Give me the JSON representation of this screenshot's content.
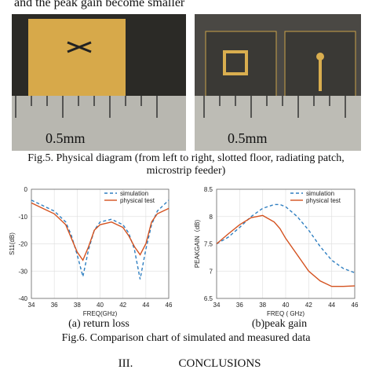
{
  "text_top": "and the peak gain become smaller",
  "figure5": {
    "photo_labels": [
      "0.5mm",
      "0.5mm"
    ],
    "caption_line1": "Fig.5. Physical diagram (from left to right, slotted floor, radiating patch,",
    "caption_line2": "microstrip feeder)"
  },
  "figure6": {
    "charts": [
      {
        "type": "line",
        "xlabel": "FREQ(GHz)",
        "ylabel": "S11(dB)",
        "x": [
          34,
          35,
          36,
          37,
          37.5,
          38,
          38.5,
          39,
          39.5,
          40,
          41,
          42,
          42.5,
          43,
          43.5,
          44,
          44.5,
          45,
          46
        ],
        "series": [
          {
            "name": "simulation",
            "color": "#2f7fc1",
            "dash": true,
            "values": [
              -4,
              -6,
              -8,
              -12,
              -17,
              -24,
              -32,
              -22,
              -15,
              -12,
              -11,
              -13,
              -16,
              -22,
              -33,
              -22,
              -13,
              -8,
              -4
            ]
          },
          {
            "name": "physical test",
            "color": "#d4511e",
            "dash": false,
            "values": [
              -5,
              -7,
              -9,
              -13,
              -18,
              -23,
              -26,
              -21,
              -15,
              -13,
              -12,
              -14,
              -17,
              -21,
              -24,
              -20,
              -12,
              -9,
              -7
            ]
          }
        ],
        "xlim": [
          34,
          46
        ],
        "xticks": [
          34,
          36,
          38,
          40,
          42,
          44,
          46
        ],
        "ylim": [
          -40,
          0
        ],
        "yticks": [
          0,
          -10,
          -20,
          -30,
          -40
        ],
        "grid": true
      },
      {
        "type": "line",
        "xlabel": "FREQ ( GHz)",
        "ylabel": "PEAKGAIN（dB)",
        "x": [
          34,
          35,
          36,
          37,
          38,
          39,
          39.5,
          40,
          41,
          42,
          43,
          44,
          45,
          46
        ],
        "series": [
          {
            "name": "simulation",
            "color": "#2f7fc1",
            "dash": true,
            "values": [
              7.5,
              7.62,
              7.8,
              8.0,
              8.15,
              8.22,
              8.22,
              8.18,
              8.0,
              7.75,
              7.45,
              7.2,
              7.05,
              6.97
            ]
          },
          {
            "name": "physical test",
            "color": "#d4511e",
            "dash": false,
            "values": [
              7.5,
              7.68,
              7.85,
              7.98,
              8.02,
              7.9,
              7.78,
              7.6,
              7.3,
              7.0,
              6.82,
              6.72,
              6.72,
              6.73
            ]
          }
        ],
        "xlim": [
          34,
          46
        ],
        "xticks": [
          34,
          36,
          38,
          40,
          42,
          44,
          46
        ],
        "ylim": [
          6.5,
          8.5
        ],
        "yticks": [
          6.5,
          7,
          7.5,
          8,
          8.5
        ],
        "grid": true
      }
    ],
    "subcaptions": [
      "(a)   return loss",
      "(b)peak gain"
    ],
    "caption": "Fig.6. Comparison chart of simulated and measured data"
  },
  "section": {
    "number": "III.",
    "title": "CONCLUSIONS"
  }
}
